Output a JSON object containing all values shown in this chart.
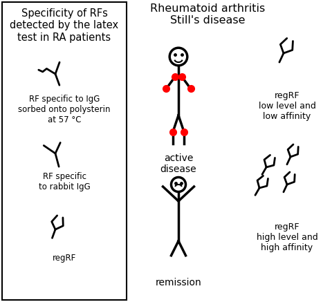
{
  "title": "Rheumatoid arthritis\nStill's disease",
  "box_title": "Specificity of RFs\ndetected by the latex\ntest in RA patients",
  "label_active": "active\ndisease",
  "label_remission": "remission",
  "label_regRF_low": "regRF\nlow level and\nlow affinity",
  "label_regRF_high": "regRF\nhigh level and\nhigh affinity",
  "label_rf_igg": "RF specific to IgG\nsorbed onto polysterin\nat 57 °C",
  "label_rf_rabbit": "RF specific\nto rabbit IgG",
  "label_regRF_left": "regRF",
  "bg_color": "#ffffff",
  "text_color": "#000000",
  "red_color": "#ff0000",
  "line_color": "#000000",
  "figsize": [
    4.8,
    4.37
  ],
  "dpi": 100
}
